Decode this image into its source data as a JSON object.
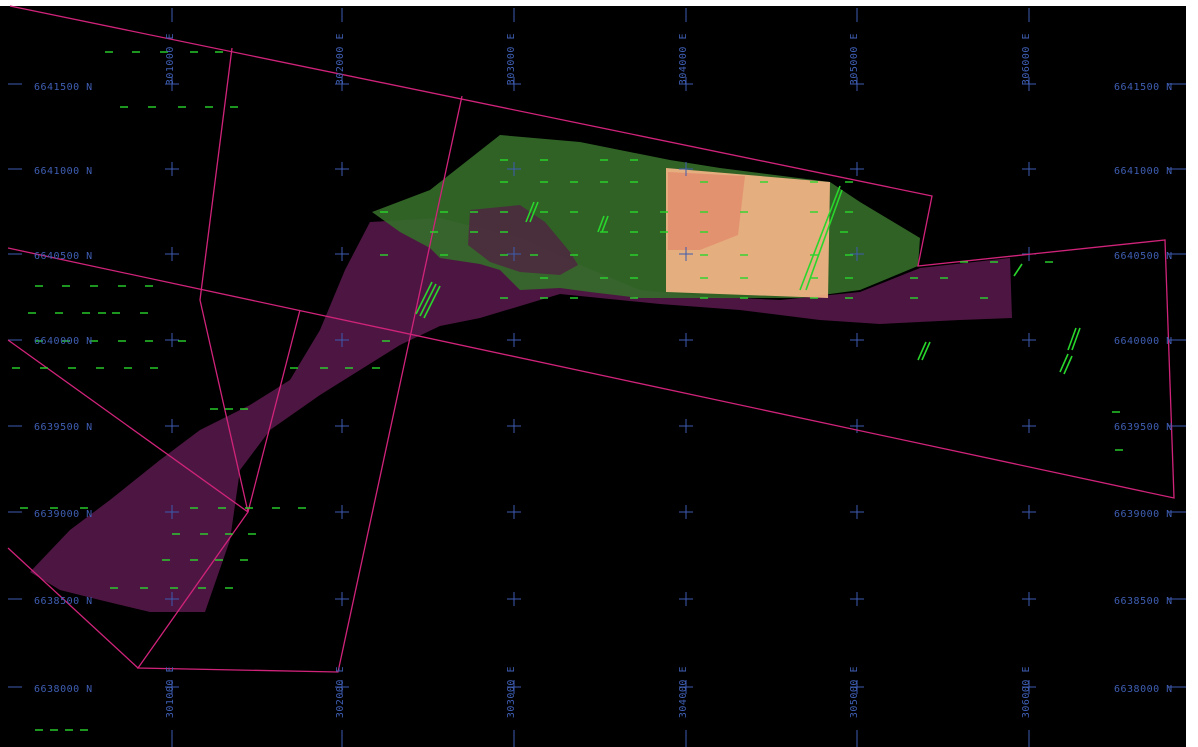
{
  "map": {
    "easting_labels": [
      "301000 E",
      "302000 E",
      "303000 E",
      "304000 E",
      "305000 E",
      "306000 E"
    ],
    "northing_labels": [
      "6641500 N",
      "6641000 N",
      "6640500 N",
      "6640000 N",
      "6639500 N",
      "6639000 N",
      "6638500 N",
      "6638000 N"
    ],
    "colors": {
      "background": "#000000",
      "grid": "#3d5bb0",
      "boundary": "#d0237a",
      "upper_zone": "#3c7a2c",
      "lower_zone": "#6e1f5c",
      "highlight_block": "#f2b48a",
      "drillhole": "#29d62c"
    }
  }
}
